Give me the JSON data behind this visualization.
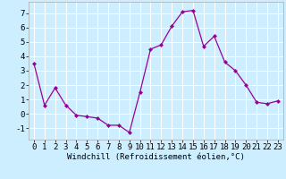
{
  "x": [
    0,
    1,
    2,
    3,
    4,
    5,
    6,
    7,
    8,
    9,
    10,
    11,
    12,
    13,
    14,
    15,
    16,
    17,
    18,
    19,
    20,
    21,
    22,
    23
  ],
  "y": [
    3.5,
    0.6,
    1.8,
    0.6,
    -0.1,
    -0.2,
    -0.3,
    -0.8,
    -0.8,
    -1.3,
    1.5,
    4.5,
    4.8,
    6.1,
    7.1,
    7.2,
    4.7,
    5.4,
    3.6,
    3.0,
    2.0,
    0.8,
    0.7,
    0.9
  ],
  "line_color": "#990099",
  "marker": "D",
  "marker_size": 2,
  "background_color": "#cceeff",
  "grid_color": "#ffffff",
  "xlabel": "Windchill (Refroidissement éolien,°C)",
  "xlabel_fontsize": 6.5,
  "tick_fontsize": 6.5,
  "ylim": [
    -1.8,
    7.8
  ],
  "xlim": [
    -0.5,
    23.5
  ],
  "yticks": [
    -1,
    0,
    1,
    2,
    3,
    4,
    5,
    6,
    7
  ],
  "xticks": [
    0,
    1,
    2,
    3,
    4,
    5,
    6,
    7,
    8,
    9,
    10,
    11,
    12,
    13,
    14,
    15,
    16,
    17,
    18,
    19,
    20,
    21,
    22,
    23
  ]
}
